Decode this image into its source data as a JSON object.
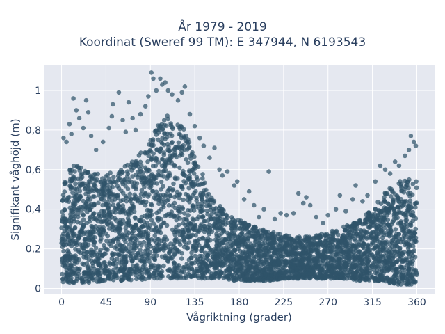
{
  "title": {
    "line1": "År 1979 - 2019",
    "line2": "Koordinat (Sweref 99 TM): E 347944, N 6193543"
  },
  "colors": {
    "background": "#e5e8f0",
    "grid": "#ffffff",
    "marker": "#2f5369",
    "text": "#2a3f5f"
  },
  "chart_data": {
    "type": "scatter",
    "title": "År 1979 - 2019\nKoordinat (Sweref 99 TM): E 347944, N 6193543",
    "xlabel": "Vågriktning (grader)",
    "ylabel": "Signifikant våghöjd (m)",
    "xlim": [
      -18,
      378
    ],
    "ylim": [
      -0.03,
      1.13
    ],
    "x_ticks": [
      0,
      45,
      90,
      135,
      180,
      225,
      270,
      315,
      360
    ],
    "x_tick_labels": [
      "0",
      "45",
      "90",
      "135",
      "180",
      "225",
      "270",
      "315",
      "360"
    ],
    "y_ticks": [
      0,
      0.2,
      0.4,
      0.6,
      0.8,
      1.0
    ],
    "y_tick_labels": [
      "0",
      "0,2",
      "0,4",
      "0,6",
      "0,8",
      "1"
    ],
    "grid": true,
    "density_envelope": {
      "description_x": [
        0,
        10,
        20,
        30,
        45,
        60,
        75,
        90,
        100,
        110,
        120,
        130,
        140,
        150,
        160,
        175,
        190,
        210,
        225,
        240,
        260,
        280,
        300,
        315,
        330,
        340,
        350,
        360
      ],
      "dense_upper_y": [
        0.55,
        0.62,
        0.62,
        0.6,
        0.58,
        0.6,
        0.66,
        0.75,
        0.85,
        0.88,
        0.84,
        0.75,
        0.62,
        0.48,
        0.42,
        0.36,
        0.32,
        0.29,
        0.27,
        0.26,
        0.27,
        0.3,
        0.34,
        0.4,
        0.5,
        0.55,
        0.55,
        0.55
      ],
      "dense_lower_y": [
        0.03,
        0.03,
        0.03,
        0.03,
        0.04,
        0.04,
        0.04,
        0.05,
        0.05,
        0.05,
        0.05,
        0.05,
        0.05,
        0.05,
        0.05,
        0.04,
        0.04,
        0.04,
        0.05,
        0.05,
        0.05,
        0.05,
        0.04,
        0.04,
        0.03,
        0.02,
        0.02,
        0.02
      ]
    },
    "outliers": [
      {
        "x": 2,
        "y": 0.76
      },
      {
        "x": 5,
        "y": 0.74
      },
      {
        "x": 8,
        "y": 0.83
      },
      {
        "x": 10,
        "y": 0.78
      },
      {
        "x": 12,
        "y": 0.96
      },
      {
        "x": 15,
        "y": 0.9
      },
      {
        "x": 18,
        "y": 0.86
      },
      {
        "x": 22,
        "y": 0.81
      },
      {
        "x": 25,
        "y": 0.95
      },
      {
        "x": 27,
        "y": 0.89
      },
      {
        "x": 30,
        "y": 0.77
      },
      {
        "x": 35,
        "y": 0.7
      },
      {
        "x": 42,
        "y": 0.74
      },
      {
        "x": 48,
        "y": 0.81
      },
      {
        "x": 51,
        "y": 0.87
      },
      {
        "x": 52,
        "y": 0.93
      },
      {
        "x": 58,
        "y": 0.99
      },
      {
        "x": 62,
        "y": 0.85
      },
      {
        "x": 65,
        "y": 0.79
      },
      {
        "x": 68,
        "y": 0.94
      },
      {
        "x": 72,
        "y": 0.86
      },
      {
        "x": 75,
        "y": 0.8
      },
      {
        "x": 80,
        "y": 0.88
      },
      {
        "x": 85,
        "y": 0.92
      },
      {
        "x": 88,
        "y": 0.97
      },
      {
        "x": 91,
        "y": 1.09
      },
      {
        "x": 93,
        "y": 1.06
      },
      {
        "x": 96,
        "y": 1.0
      },
      {
        "x": 100,
        "y": 1.06
      },
      {
        "x": 102,
        "y": 1.03
      },
      {
        "x": 105,
        "y": 1.04
      },
      {
        "x": 108,
        "y": 1.0
      },
      {
        "x": 112,
        "y": 0.98
      },
      {
        "x": 118,
        "y": 0.95
      },
      {
        "x": 122,
        "y": 0.99
      },
      {
        "x": 125,
        "y": 1.02
      },
      {
        "x": 130,
        "y": 0.88
      },
      {
        "x": 135,
        "y": 0.82
      },
      {
        "x": 140,
        "y": 0.76
      },
      {
        "x": 144,
        "y": 0.72
      },
      {
        "x": 150,
        "y": 0.66
      },
      {
        "x": 155,
        "y": 0.71
      },
      {
        "x": 160,
        "y": 0.6
      },
      {
        "x": 163,
        "y": 0.57
      },
      {
        "x": 168,
        "y": 0.59
      },
      {
        "x": 175,
        "y": 0.52
      },
      {
        "x": 178,
        "y": 0.54
      },
      {
        "x": 185,
        "y": 0.45
      },
      {
        "x": 190,
        "y": 0.49
      },
      {
        "x": 195,
        "y": 0.42
      },
      {
        "x": 200,
        "y": 0.36
      },
      {
        "x": 205,
        "y": 0.4
      },
      {
        "x": 210,
        "y": 0.59
      },
      {
        "x": 216,
        "y": 0.35
      },
      {
        "x": 222,
        "y": 0.38
      },
      {
        "x": 228,
        "y": 0.37
      },
      {
        "x": 235,
        "y": 0.38
      },
      {
        "x": 240,
        "y": 0.48
      },
      {
        "x": 245,
        "y": 0.43
      },
      {
        "x": 248,
        "y": 0.46
      },
      {
        "x": 252,
        "y": 0.42
      },
      {
        "x": 258,
        "y": 0.36
      },
      {
        "x": 265,
        "y": 0.33
      },
      {
        "x": 270,
        "y": 0.37
      },
      {
        "x": 278,
        "y": 0.4
      },
      {
        "x": 282,
        "y": 0.47
      },
      {
        "x": 288,
        "y": 0.39
      },
      {
        "x": 295,
        "y": 0.45
      },
      {
        "x": 298,
        "y": 0.52
      },
      {
        "x": 305,
        "y": 0.44
      },
      {
        "x": 310,
        "y": 0.47
      },
      {
        "x": 318,
        "y": 0.54
      },
      {
        "x": 323,
        "y": 0.62
      },
      {
        "x": 328,
        "y": 0.6
      },
      {
        "x": 333,
        "y": 0.58
      },
      {
        "x": 338,
        "y": 0.64
      },
      {
        "x": 342,
        "y": 0.62
      },
      {
        "x": 348,
        "y": 0.67
      },
      {
        "x": 352,
        "y": 0.7
      },
      {
        "x": 354,
        "y": 0.77
      },
      {
        "x": 357,
        "y": 0.74
      },
      {
        "x": 359,
        "y": 0.72
      }
    ]
  }
}
